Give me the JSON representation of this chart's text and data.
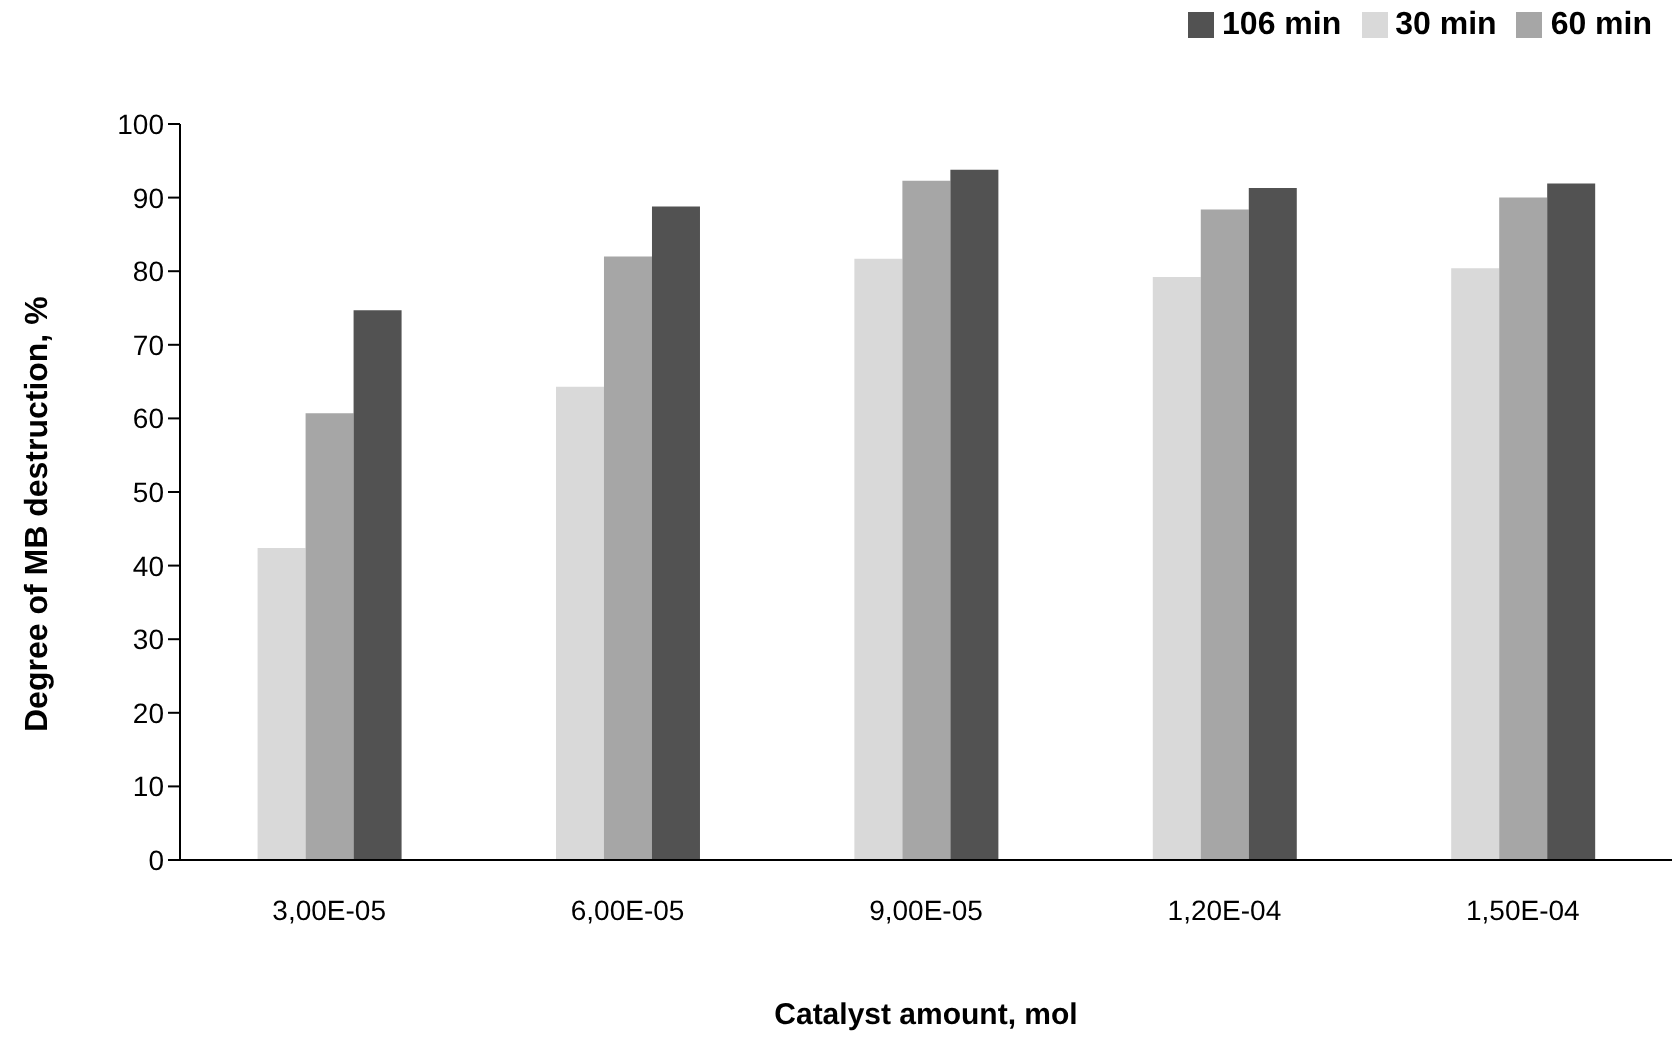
{
  "chart_data": {
    "type": "bar",
    "xlabel": "Catalyst amount, mol",
    "ylabel": "Degree of MB destruction, %",
    "categories": [
      "3,00E-05",
      "6,00E-05",
      "9,00E-05",
      "1,20E-04",
      "1,50E-04"
    ],
    "series": [
      {
        "name": "30 min",
        "color": "#d9d9d9",
        "values": [
          42.4,
          64.3,
          81.7,
          79.2,
          80.4
        ]
      },
      {
        "name": "60 min",
        "color": "#a6a6a6",
        "values": [
          60.7,
          82.0,
          92.3,
          88.4,
          90.0
        ]
      },
      {
        "name": "106 min",
        "color": "#525252",
        "values": [
          74.7,
          88.8,
          93.8,
          91.3,
          91.9
        ]
      }
    ],
    "ylim": [
      0,
      100
    ],
    "yticks": [
      0,
      10,
      20,
      30,
      40,
      50,
      60,
      70,
      80,
      90,
      100
    ],
    "grid": false,
    "legend": "top right"
  }
}
